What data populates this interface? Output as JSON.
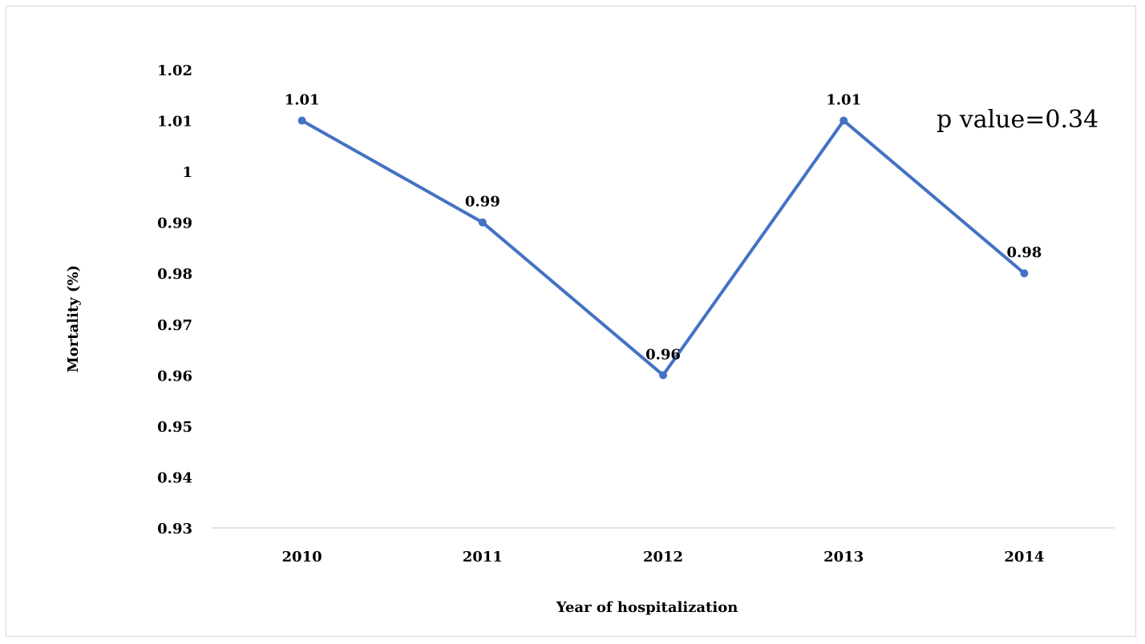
{
  "chart_data": {
    "type": "line",
    "title": "",
    "xlabel": "Year of hospitalization",
    "ylabel": "Mortality (%)",
    "categories": [
      "2010",
      "2011",
      "2012",
      "2013",
      "2014"
    ],
    "series": [
      {
        "values": [
          1.01,
          0.99,
          0.96,
          1.01,
          0.98
        ],
        "color": "#4472C4"
      }
    ],
    "data_labels": [
      "1.01",
      "0.99",
      "0.96",
      "1.01",
      "0.98"
    ],
    "y_ticks": [
      "0.93",
      "0.94",
      "0.95",
      "0.96",
      "0.97",
      "0.98",
      "0.99",
      "1",
      "1.01",
      "1.02"
    ],
    "ylim": [
      0.93,
      1.02
    ],
    "grid": false,
    "legend": "none",
    "annotation": "p value=0.34"
  }
}
